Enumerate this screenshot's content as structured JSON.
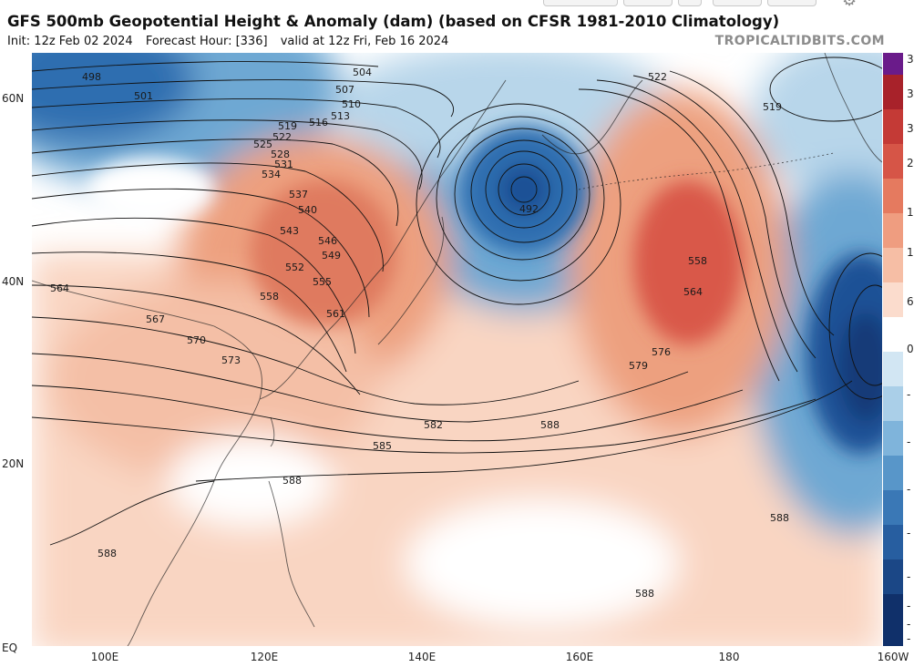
{
  "header": {
    "title": "GFS 500mb Geopotential Height & Anomaly (dam) (based on CFSR 1981-2010 Climatology)",
    "init": "Init: 12z Feb 02 2024",
    "forecast_hour": "Forecast Hour: [336]",
    "valid": "valid at 12z Fri, Feb 16 2024",
    "brand": "TROPICALTIDBITS.COM"
  },
  "axes": {
    "lat_labels": [
      "60N",
      "40N",
      "20N",
      "EQ"
    ],
    "lon_labels": [
      "100E",
      "120E",
      "140E",
      "160E",
      "180",
      "160W"
    ]
  },
  "colorbar": {
    "labels": [
      "3",
      "3",
      "3",
      "2",
      "1",
      "1",
      "6",
      "0",
      "-",
      "-",
      "-",
      "-",
      "-",
      "-",
      "-",
      "-"
    ]
  },
  "contour_labels": [
    "498",
    "501",
    "504",
    "507",
    "510",
    "513",
    "516",
    "519",
    "522",
    "525",
    "528",
    "531",
    "534",
    "537",
    "540",
    "543",
    "546",
    "549",
    "552",
    "555",
    "558",
    "561",
    "564",
    "567",
    "570",
    "573",
    "576",
    "579",
    "582",
    "585",
    "588",
    "492"
  ],
  "colors": {
    "warm_light": "#f9d5c2",
    "warm_mid": "#eda07f",
    "warm_strong": "#d9584a",
    "cool_light": "#b8d6ea",
    "cool_mid": "#6ea8d3",
    "cool_strong": "#2e6eb0",
    "cool_deep": "#123a78"
  }
}
